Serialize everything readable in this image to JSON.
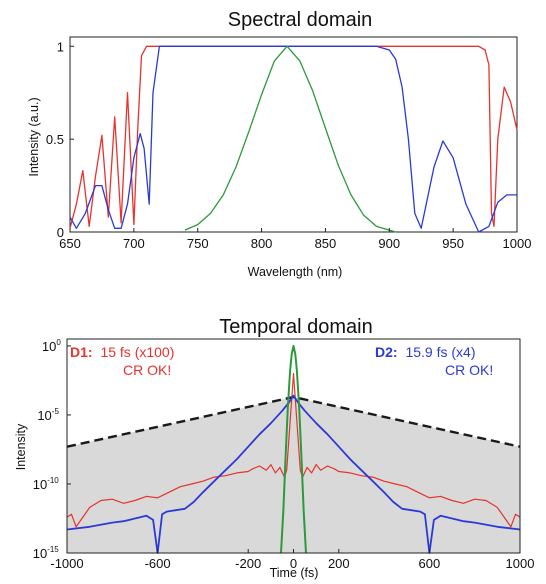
{
  "colors": {
    "red": "#e8322e",
    "blue": "#2b3ad6",
    "green": "#2a9a3c",
    "gray_fill": "#d9d9d9",
    "dashed": "#1a1a1a"
  },
  "chart_data": [
    {
      "type": "line",
      "title": "Spectral domain",
      "xlabel": "Wavelength (nm)",
      "ylabel": "Intensity (a.u.)",
      "xlim": [
        650,
        1000
      ],
      "ylim": [
        0,
        1.05
      ],
      "x_ticks": [
        "650",
        "700",
        "750",
        "800",
        "850",
        "900",
        "950",
        "1000"
      ],
      "y_ticks": [
        "0",
        "0.5",
        "1"
      ],
      "series": [
        {
          "color": "red",
          "x": [
            650,
            655,
            660,
            665,
            670,
            675,
            680,
            685,
            690,
            695,
            700,
            703,
            706,
            710,
            715,
            720,
            750,
            800,
            850,
            900,
            950,
            970,
            975,
            978,
            980,
            982,
            985,
            990,
            995,
            1000
          ],
          "y": [
            0.02,
            0.15,
            0.33,
            0.03,
            0.3,
            0.52,
            0.08,
            0.62,
            0.05,
            0.75,
            0.04,
            0.55,
            0.95,
            1.0,
            1.0,
            1.0,
            1.0,
            1.0,
            1.0,
            1.0,
            1.0,
            1.0,
            0.98,
            0.9,
            0.1,
            0.03,
            0.5,
            0.78,
            0.7,
            0.55
          ]
        },
        {
          "color": "blue",
          "x": [
            650,
            655,
            662,
            670,
            675,
            680,
            685,
            690,
            695,
            700,
            705,
            708,
            712,
            715,
            720,
            750,
            800,
            850,
            890,
            900,
            905,
            910,
            915,
            920,
            925,
            935,
            942,
            950,
            960,
            970,
            978,
            985,
            992,
            1000
          ],
          "y": [
            0.08,
            0.02,
            0.1,
            0.25,
            0.25,
            0.12,
            0.02,
            0.02,
            0.15,
            0.4,
            0.53,
            0.45,
            0.15,
            0.75,
            1.0,
            1.0,
            1.0,
            1.0,
            1.0,
            0.98,
            0.93,
            0.78,
            0.5,
            0.1,
            0.02,
            0.35,
            0.49,
            0.4,
            0.15,
            0.0,
            0.03,
            0.16,
            0.2,
            0.2
          ]
        },
        {
          "color": "green",
          "x": [
            740,
            750,
            760,
            770,
            780,
            790,
            800,
            810,
            820,
            830,
            840,
            850,
            860,
            870,
            880,
            890,
            900,
            905
          ],
          "y": [
            0.01,
            0.04,
            0.1,
            0.2,
            0.35,
            0.54,
            0.74,
            0.92,
            1.0,
            0.92,
            0.76,
            0.56,
            0.36,
            0.2,
            0.09,
            0.03,
            0.01,
            0.0
          ]
        }
      ]
    },
    {
      "type": "line",
      "title": "Temporal domain",
      "xlabel": "Time (fs)",
      "ylabel": "Intensity",
      "xlim": [
        -1000,
        1000
      ],
      "yscale": "log",
      "ylim": [
        -15,
        0.5
      ],
      "x_ticks": [
        "-1000",
        "-600",
        "-200",
        "0",
        "200",
        "600",
        "1000"
      ],
      "y_ticks": [
        {
          "base": "10",
          "exp": "0"
        },
        {
          "base": "10",
          "exp": "-5"
        },
        {
          "base": "10",
          "exp": "-10"
        },
        {
          "base": "10",
          "exp": "-15"
        }
      ],
      "shaded_envelope": {
        "x": [
          -1000,
          0,
          1000
        ],
        "log10_y": [
          -7.3,
          -3.7,
          -7.3
        ]
      },
      "series": [
        {
          "color": "red",
          "log10_x": "time",
          "x": [
            -1000,
            -980,
            -960,
            -930,
            -900,
            -850,
            -800,
            -750,
            -700,
            -650,
            -600,
            -550,
            -500,
            -450,
            -400,
            -350,
            -300,
            -250,
            -200,
            -180,
            -150,
            -120,
            -100,
            -80,
            -60,
            -40,
            -30,
            0,
            30,
            40,
            60,
            80,
            100,
            120,
            150,
            180,
            200,
            250,
            300,
            350,
            400,
            450,
            500,
            550,
            600,
            650,
            700,
            750,
            800,
            850,
            900,
            930,
            960,
            980,
            1000
          ],
          "log10_y": [
            -12.4,
            -12.2,
            -13.1,
            -12.4,
            -11.7,
            -11.2,
            -11.1,
            -11.4,
            -11.2,
            -10.9,
            -11.0,
            -10.6,
            -10.2,
            -10.0,
            -9.8,
            -9.5,
            -9.4,
            -9.2,
            -9.1,
            -8.9,
            -8.7,
            -9.0,
            -8.6,
            -9.2,
            -8.8,
            -9.5,
            -9.0,
            -2.0,
            -9.0,
            -9.5,
            -8.8,
            -9.2,
            -8.6,
            -9.0,
            -8.7,
            -8.9,
            -9.1,
            -9.2,
            -9.4,
            -9.5,
            -9.8,
            -10.0,
            -10.2,
            -10.6,
            -11.0,
            -10.9,
            -11.2,
            -11.4,
            -11.1,
            -11.2,
            -11.7,
            -12.4,
            -13.1,
            -12.2,
            -12.4
          ]
        },
        {
          "color": "blue",
          "x": [
            -1000,
            -900,
            -800,
            -750,
            -700,
            -650,
            -620,
            -600,
            -580,
            -560,
            -520,
            -480,
            -440,
            -400,
            -350,
            -300,
            -250,
            -200,
            -150,
            -100,
            -50,
            -20,
            0,
            20,
            50,
            100,
            150,
            200,
            250,
            300,
            350,
            400,
            440,
            480,
            520,
            560,
            580,
            600,
            620,
            650,
            700,
            750,
            800,
            900,
            1000
          ],
          "log10_y": [
            -13.3,
            -13.1,
            -12.8,
            -12.7,
            -12.5,
            -12.3,
            -12.6,
            -15.0,
            -12.2,
            -12.0,
            -11.9,
            -11.8,
            -11.3,
            -10.6,
            -9.8,
            -9.0,
            -8.2,
            -7.3,
            -6.4,
            -5.6,
            -4.7,
            -4.1,
            -3.6,
            -4.1,
            -4.7,
            -5.6,
            -6.4,
            -7.3,
            -8.2,
            -9.0,
            -9.8,
            -10.6,
            -11.3,
            -11.8,
            -11.9,
            -12.0,
            -12.2,
            -15.0,
            -12.6,
            -12.3,
            -12.5,
            -12.7,
            -12.8,
            -13.1,
            -13.3
          ]
        },
        {
          "color": "green",
          "x": [
            -55,
            -45,
            -35,
            -25,
            -15,
            -8,
            0,
            8,
            15,
            25,
            35,
            45,
            55
          ],
          "log10_y": [
            -15.5,
            -12.0,
            -8.0,
            -4.5,
            -1.8,
            -0.6,
            0.0,
            -0.6,
            -1.8,
            -4.5,
            -8.0,
            -12.0,
            -15.5
          ]
        }
      ],
      "annotations": {
        "d1_label": "D1:",
        "d1_text": "15 fs (x100)",
        "d1_status": "CR OK!",
        "d2_label": "D2:",
        "d2_text": "15.9 fs (x4)",
        "d2_status": "CR OK!"
      }
    }
  ]
}
